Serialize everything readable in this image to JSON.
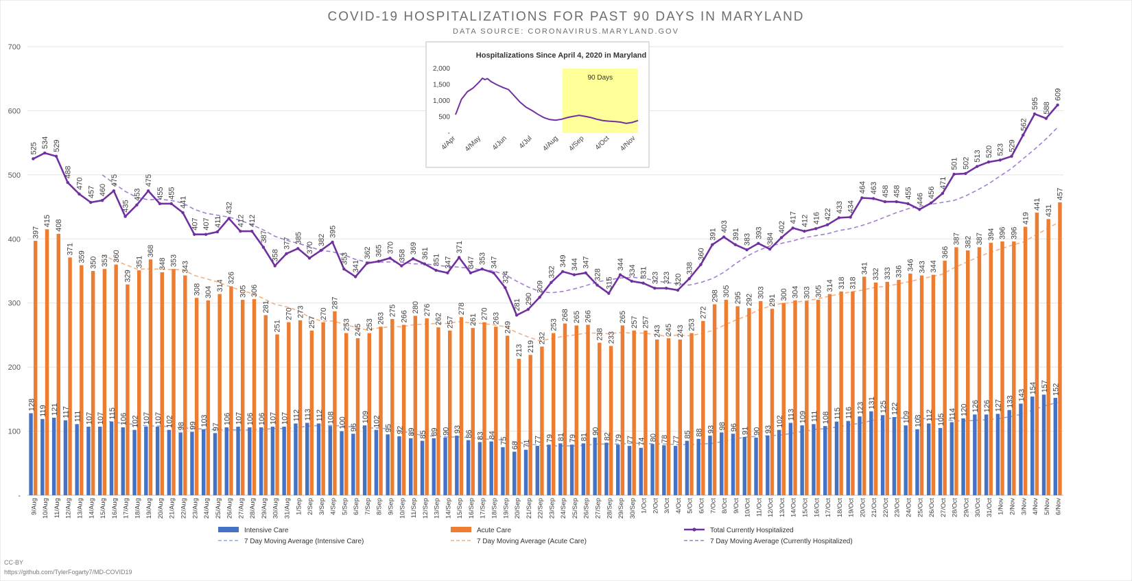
{
  "header": {
    "title": "COVID-19 HOSPITALIZATIONS FOR PAST 90 DAYS IN MARYLAND",
    "subtitle": "DATA SOURCE: CORONAVIRUS.MARYLAND.GOV"
  },
  "footer": {
    "license": "CC-BY",
    "url": "https://github.com/TylerFogarty7/MD-COVID19"
  },
  "colors": {
    "intensive_care": "#4472c4",
    "acute_care": "#ed7d31",
    "total": "#7030a0",
    "total_ma": "#a47fd1",
    "icu_ma": "#8ea9db",
    "acute_ma": "#f4b183",
    "inset_highlight": "#ffff99"
  },
  "chart_data": [
    {
      "type": "bar",
      "title": "COVID-19 HOSPITALIZATIONS FOR PAST 90 DAYS IN MARYLAND",
      "subtitle": "DATA SOURCE: CORONAVIRUS.MARYLAND.GOV",
      "ylim": [
        0,
        700
      ],
      "yticks": [
        0,
        100,
        200,
        300,
        400,
        500,
        600,
        700
      ],
      "ytick_labels": [
        "-",
        "100",
        "200",
        "300",
        "400",
        "500",
        "600",
        "700"
      ],
      "grid": true,
      "legend_position": "bottom",
      "categories": [
        "9/Aug",
        "10/Aug",
        "11/Aug",
        "12/Aug",
        "13/Aug",
        "14/Aug",
        "15/Aug",
        "16/Aug",
        "17/Aug",
        "18/Aug",
        "19/Aug",
        "20/Aug",
        "21/Aug",
        "22/Aug",
        "23/Aug",
        "24/Aug",
        "25/Aug",
        "26/Aug",
        "27/Aug",
        "28/Aug",
        "29/Aug",
        "30/Aug",
        "31/Aug",
        "1/Sep",
        "2/Sep",
        "3/Sep",
        "4/Sep",
        "5/Sep",
        "6/Sep",
        "7/Sep",
        "8/Sep",
        "9/Sep",
        "10/Sep",
        "11/Sep",
        "12/Sep",
        "13/Sep",
        "14/Sep",
        "15/Sep",
        "16/Sep",
        "17/Sep",
        "18/Sep",
        "19/Sep",
        "20/Sep",
        "21/Sep",
        "22/Sep",
        "23/Sep",
        "24/Sep",
        "25/Sep",
        "26/Sep",
        "27/Sep",
        "28/Sep",
        "29/Sep",
        "30/Sep",
        "1/Oct",
        "2/Oct",
        "3/Oct",
        "4/Oct",
        "5/Oct",
        "6/Oct",
        "7/Oct",
        "8/Oct",
        "9/Oct",
        "10/Oct",
        "11/Oct",
        "12/Oct",
        "13/Oct",
        "14/Oct",
        "15/Oct",
        "16/Oct",
        "17/Oct",
        "18/Oct",
        "19/Oct",
        "20/Oct",
        "21/Oct",
        "22/Oct",
        "23/Oct",
        "24/Oct",
        "25/Oct",
        "26/Oct",
        "27/Oct",
        "28/Oct",
        "29/Oct",
        "30/Oct",
        "31/Oct",
        "1/Nov",
        "2/Nov",
        "3/Nov",
        "4/Nov",
        "5/Nov",
        "6/Nov"
      ],
      "series": [
        {
          "name": "Intensive Care",
          "kind": "bar",
          "values": [
            128,
            119,
            121,
            117,
            111,
            107,
            107,
            115,
            106,
            102,
            107,
            107,
            102,
            98,
            99,
            103,
            97,
            106,
            107,
            106,
            106,
            107,
            107,
            112,
            113,
            112,
            108,
            100,
            96,
            109,
            102,
            95,
            92,
            89,
            85,
            89,
            90,
            93,
            86,
            83,
            84,
            75,
            68,
            71,
            77,
            79,
            81,
            79,
            81,
            90,
            82,
            79,
            77,
            74,
            80,
            78,
            77,
            85,
            88,
            93,
            98,
            96,
            91,
            90,
            93,
            102,
            113,
            109,
            111,
            108,
            115,
            116,
            123,
            131,
            125,
            122,
            109,
            103,
            112,
            105,
            114,
            120,
            126,
            126,
            127,
            133,
            143,
            154,
            157,
            152
          ]
        },
        {
          "name": "Acute Care",
          "kind": "bar",
          "values": [
            397,
            415,
            408,
            371,
            359,
            350,
            353,
            360,
            329,
            351,
            368,
            348,
            353,
            343,
            308,
            304,
            314,
            326,
            305,
            306,
            281,
            251,
            270,
            273,
            257,
            270,
            287,
            253,
            245,
            253,
            263,
            275,
            266,
            280,
            276,
            262,
            257,
            278,
            261,
            270,
            263,
            249,
            213,
            219,
            232,
            253,
            268,
            265,
            266,
            238,
            233,
            265,
            257,
            257,
            243,
            245,
            243,
            253,
            272,
            298,
            305,
            295,
            292,
            303,
            291,
            300,
            304,
            303,
            305,
            314,
            318,
            318,
            341,
            332,
            333,
            336,
            346,
            343,
            344,
            366,
            387,
            382,
            387,
            394,
            396,
            396,
            419,
            441,
            431,
            457
          ]
        },
        {
          "name": "Total Currently Hospitalized",
          "kind": "line",
          "values": [
            525,
            534,
            529,
            488,
            470,
            457,
            460,
            475,
            435,
            453,
            475,
            455,
            455,
            441,
            407,
            407,
            411,
            432,
            412,
            412,
            387,
            358,
            377,
            385,
            370,
            382,
            395,
            353,
            341,
            362,
            365,
            370,
            358,
            369,
            361,
            351,
            347,
            371,
            347,
            353,
            347,
            324,
            281,
            290,
            309,
            332,
            349,
            344,
            347,
            328,
            315,
            344,
            334,
            331,
            323,
            323,
            320,
            338,
            360,
            391,
            403,
            391,
            383,
            393,
            384,
            402,
            417,
            412,
            416,
            422,
            433,
            434,
            464,
            463,
            458,
            458,
            455,
            446,
            456,
            471,
            501,
            502,
            513,
            520,
            523,
            529,
            562,
            595,
            588,
            609
          ]
        },
        {
          "name": "7 Day Moving Average (Intensive Care)",
          "kind": "dashed-line",
          "values": [
            null,
            null,
            null,
            null,
            null,
            null,
            117,
            114,
            112,
            110,
            108,
            108,
            107,
            105,
            104,
            103,
            102,
            102,
            102,
            102,
            103,
            104,
            104,
            106,
            108,
            109,
            109,
            108,
            106,
            105,
            105,
            103,
            100,
            96,
            93,
            92,
            91,
            91,
            90,
            88,
            87,
            86,
            83,
            80,
            78,
            77,
            77,
            77,
            78,
            80,
            80,
            80,
            81,
            81,
            80,
            80,
            79,
            79,
            80,
            81,
            84,
            88,
            91,
            92,
            93,
            94,
            97,
            100,
            103,
            104,
            107,
            110,
            113,
            117,
            119,
            121,
            120,
            120,
            119,
            119,
            116,
            116,
            117,
            118,
            120,
            123,
            127,
            134,
            140,
            145
          ]
        },
        {
          "name": "7 Day Moving Average (Acute Care)",
          "kind": "dashed-line",
          "values": [
            null,
            null,
            null,
            null,
            null,
            null,
            375,
            367,
            360,
            353,
            353,
            353,
            352,
            352,
            343,
            338,
            333,
            326,
            320,
            315,
            307,
            298,
            294,
            288,
            278,
            272,
            272,
            267,
            262,
            258,
            261,
            263,
            263,
            266,
            267,
            268,
            268,
            271,
            269,
            268,
            266,
            263,
            254,
            247,
            241,
            244,
            248,
            250,
            253,
            253,
            252,
            254,
            253,
            253,
            251,
            248,
            250,
            249,
            252,
            257,
            265,
            273,
            280,
            289,
            295,
            299,
            301,
            303,
            306,
            310,
            314,
            317,
            320,
            324,
            326,
            329,
            333,
            337,
            341,
            345,
            355,
            363,
            371,
            378,
            384,
            390,
            395,
            405,
            415,
            425
          ]
        },
        {
          "name": "7 Day Moving Average (Currently Hospitalized)",
          "kind": "dashed-line",
          "values": [
            null,
            null,
            null,
            null,
            null,
            null,
            500,
            487,
            474,
            465,
            461,
            462,
            460,
            456,
            446,
            440,
            437,
            434,
            429,
            422,
            414,
            404,
            398,
            393,
            388,
            382,
            380,
            375,
            368,
            364,
            364,
            364,
            364,
            361,
            361,
            359,
            357,
            356,
            354,
            352,
            350,
            344,
            334,
            325,
            318,
            316,
            318,
            322,
            327,
            333,
            336,
            339,
            340,
            339,
            335,
            332,
            330,
            328,
            332,
            338,
            348,
            361,
            373,
            382,
            389,
            393,
            397,
            402,
            405,
            408,
            413,
            416,
            421,
            427,
            434,
            441,
            447,
            451,
            454,
            457,
            460,
            467,
            476,
            486,
            498,
            510,
            525,
            540,
            556,
            574
          ]
        }
      ]
    },
    {
      "type": "line",
      "title": "Hospitalizations Since April 4, 2020 in Maryland",
      "ylim": [
        0,
        2000
      ],
      "yticks": [
        0,
        500,
        1000,
        1500,
        2000
      ],
      "ytick_labels": [
        "-",
        "500",
        "1,000",
        "1,500",
        "2,000"
      ],
      "xtick_labels": [
        "4/Apr",
        "4/May",
        "4/Jun",
        "4/Jul",
        "4/Aug",
        "4/Sep",
        "4/Oct",
        "4/Nov"
      ],
      "x_days_since_apr4": [
        0,
        7,
        14,
        21,
        28,
        32,
        35,
        38,
        42,
        49,
        56,
        63,
        70,
        77,
        84,
        91,
        98,
        105,
        112,
        119,
        126,
        133,
        140,
        147,
        154,
        161,
        168,
        175,
        182,
        189,
        196,
        203,
        210,
        217
      ],
      "values": [
        570,
        1050,
        1280,
        1400,
        1580,
        1700,
        1660,
        1690,
        1600,
        1500,
        1420,
        1350,
        1150,
        950,
        800,
        700,
        580,
        480,
        420,
        400,
        430,
        480,
        520,
        550,
        520,
        480,
        430,
        390,
        370,
        360,
        340,
        300,
        330,
        390
      ],
      "highlight": {
        "label": "90 Days",
        "from_day": 127,
        "to_day": 217
      }
    }
  ]
}
